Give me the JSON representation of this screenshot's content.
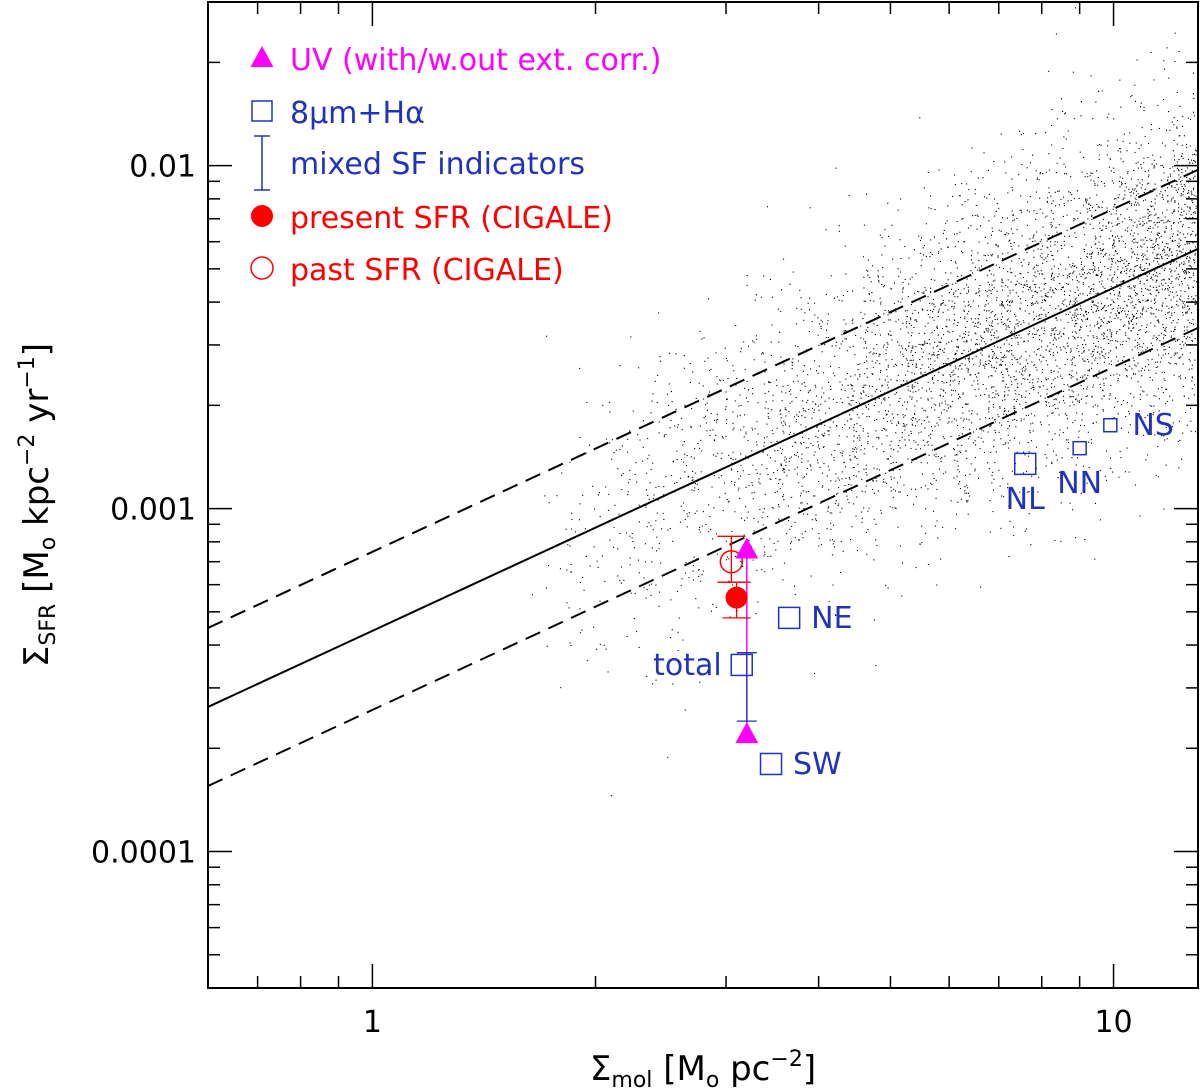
{
  "chart_data": {
    "type": "scatter",
    "xscale": "log",
    "yscale": "log",
    "xlim": [
      0.6,
      13
    ],
    "ylim": [
      4e-05,
      0.03
    ],
    "xlabel": {
      "base": "Σ",
      "sub": "mol",
      "unit_open": " [M",
      "unit_sub": "o",
      "unit_rest": " pc",
      "sup": "−2",
      "close": "]"
    },
    "ylabel": {
      "base": "Σ",
      "sub": "SFR",
      "unit_open": " [M",
      "unit_sub": "o",
      "unit_rest": " kpc",
      "sup1": "−2",
      "mid": " yr",
      "sup2": "−1",
      "close": "]"
    },
    "xticks": [
      {
        "value": 1,
        "label": "1"
      },
      {
        "value": 10,
        "label": "10"
      }
    ],
    "yticks": [
      {
        "value": 0.0001,
        "label": "0.0001"
      },
      {
        "value": 0.001,
        "label": "0.001"
      },
      {
        "value": 0.01,
        "label": "0.01"
      }
    ],
    "relation": {
      "slope": 1.0,
      "norm_at_1": 0.00044,
      "scatter_factor": 1.7
    },
    "colors": {
      "uv": "#ff00ff",
      "sf": "#2233bb",
      "cigale": "#ff0000",
      "line": "#000000",
      "dots": "#000000"
    },
    "legend": [
      {
        "symbol": "filled-triangle",
        "color": "#ff00ff",
        "label": "UV (with/w.out ext. corr.)"
      },
      {
        "symbol": "open-square",
        "color": "#2233bb",
        "label": "8μm+Hα"
      },
      {
        "symbol": "errorbar",
        "color": "#2233bb",
        "label": "mixed SF indicators"
      },
      {
        "symbol": "filled-circle",
        "color": "#ff0000",
        "label": "present SFR (CIGALE)"
      },
      {
        "symbol": "open-circle",
        "color": "#ff0000",
        "label": "past SFR (CIGALE)"
      }
    ],
    "series": [
      {
        "name": "UV (with/w.out ext. corr.)",
        "symbol": "filled-triangle",
        "color": "#ff00ff",
        "points": [
          {
            "x": 3.2,
            "y": 0.00076
          },
          {
            "x": 3.2,
            "y": 0.00022
          }
        ]
      },
      {
        "name": "8μm+Hα",
        "symbol": "open-square",
        "color": "#2233bb",
        "points": [
          {
            "x": 3.65,
            "y": 0.00048,
            "label": "NE",
            "size": "large"
          },
          {
            "x": 3.15,
            "y": 0.00035,
            "label": "total",
            "size": "large"
          },
          {
            "x": 3.45,
            "y": 0.00018,
            "label": "SW",
            "size": "large"
          },
          {
            "x": 7.6,
            "y": 0.00135,
            "label": "NL",
            "size": "large"
          },
          {
            "x": 9.0,
            "y": 0.0015,
            "label": "NN",
            "size": "small"
          },
          {
            "x": 9.9,
            "y": 0.00175,
            "label": "NS",
            "size": "small"
          }
        ]
      },
      {
        "name": "mixed SF indicators",
        "symbol": "errorbar",
        "color": "#2233bb",
        "points": [
          {
            "x": 3.2,
            "y": 0.00035,
            "ylow": 0.00024,
            "yhigh": 0.00038
          }
        ]
      },
      {
        "name": "present SFR (CIGALE)",
        "symbol": "filled-circle",
        "color": "#ff0000",
        "points": [
          {
            "x": 3.1,
            "y": 0.00055,
            "ylow": 0.00048,
            "yhigh": 0.00061
          }
        ]
      },
      {
        "name": "past SFR (CIGALE)",
        "symbol": "open-circle",
        "color": "#ff0000",
        "points": [
          {
            "x": 3.05,
            "y": 0.0007,
            "ylow": 0.00061,
            "yhigh": 0.00083
          }
        ]
      }
    ]
  }
}
